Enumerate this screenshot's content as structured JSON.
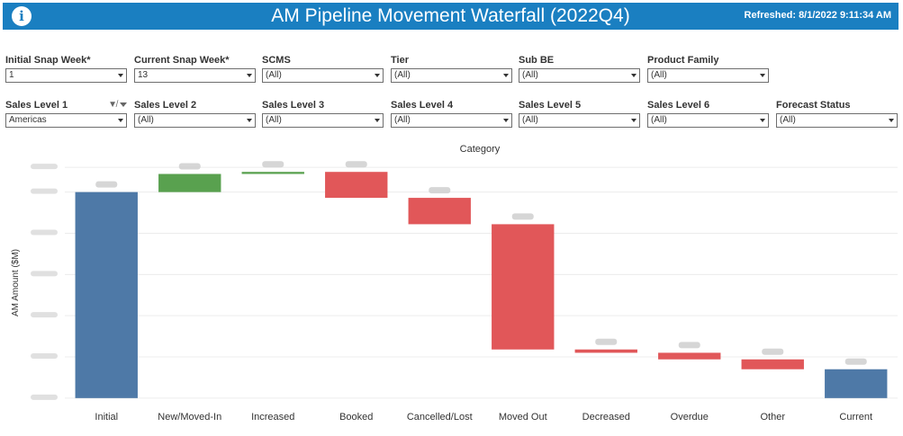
{
  "header": {
    "info_icon": "info-icon",
    "title": "AM Pipeline Movement Waterfall (2022Q4)",
    "refreshed": "Refreshed: 8/1/2022 9:11:34 AM",
    "color": "#1a7fc1"
  },
  "filters_row1": [
    {
      "label": "Initial Snap Week*",
      "value": "1"
    },
    {
      "label": "Current Snap Week*",
      "value": "13"
    },
    {
      "label": "SCMS",
      "value": "(All)"
    },
    {
      "label": "Tier",
      "value": "(All)"
    },
    {
      "label": "Sub BE",
      "value": "(All)"
    },
    {
      "label": "Product Family",
      "value": "(All)"
    }
  ],
  "filters_row2": [
    {
      "label": "Sales Level 1",
      "value": "Americas"
    },
    {
      "label": "Sales Level 2",
      "value": "(All)"
    },
    {
      "label": "Sales Level 3",
      "value": "(All)"
    },
    {
      "label": "Sales Level 4",
      "value": "(All)"
    },
    {
      "label": "Sales Level 5",
      "value": "(All)"
    },
    {
      "label": "Sales Level 6",
      "value": "(All)"
    },
    {
      "label": "Forecast Status",
      "value": "(All)"
    }
  ],
  "chart_data": {
    "type": "waterfall",
    "title": "Category",
    "ylabel": "AM Amount ($M)",
    "xlabel": "",
    "categories": [
      "Initial",
      "New/Moved-In",
      "Increased",
      "Booked",
      "Cancelled/Lost",
      "Moved Out",
      "Decreased",
      "Overdue",
      "Other",
      "Current"
    ],
    "bars": [
      {
        "category": "Initial",
        "start": 0,
        "end": 2500,
        "kind": "total"
      },
      {
        "category": "New/Moved-In",
        "start": 2500,
        "end": 2720,
        "kind": "increase"
      },
      {
        "category": "Increased",
        "start": 2720,
        "end": 2745,
        "kind": "increase"
      },
      {
        "category": "Booked",
        "start": 2745,
        "end": 2430,
        "kind": "decrease"
      },
      {
        "category": "Cancelled/Lost",
        "start": 2430,
        "end": 2110,
        "kind": "decrease"
      },
      {
        "category": "Moved Out",
        "start": 2110,
        "end": 590,
        "kind": "decrease"
      },
      {
        "category": "Decreased",
        "start": 590,
        "end": 550,
        "kind": "decrease"
      },
      {
        "category": "Overdue",
        "start": 550,
        "end": 470,
        "kind": "decrease"
      },
      {
        "category": "Other",
        "start": 470,
        "end": 350,
        "kind": "decrease"
      },
      {
        "category": "Current",
        "start": 0,
        "end": 350,
        "kind": "total"
      }
    ],
    "ylim": [
      -100,
      2900
    ],
    "y_ticks": [
      0,
      500,
      1000,
      1500,
      2000,
      2500,
      2800
    ],
    "grid": true,
    "colors": {
      "total": "#4e79a7",
      "increase": "#59a14f",
      "decrease": "#e15759",
      "grid": "#ececec"
    }
  }
}
